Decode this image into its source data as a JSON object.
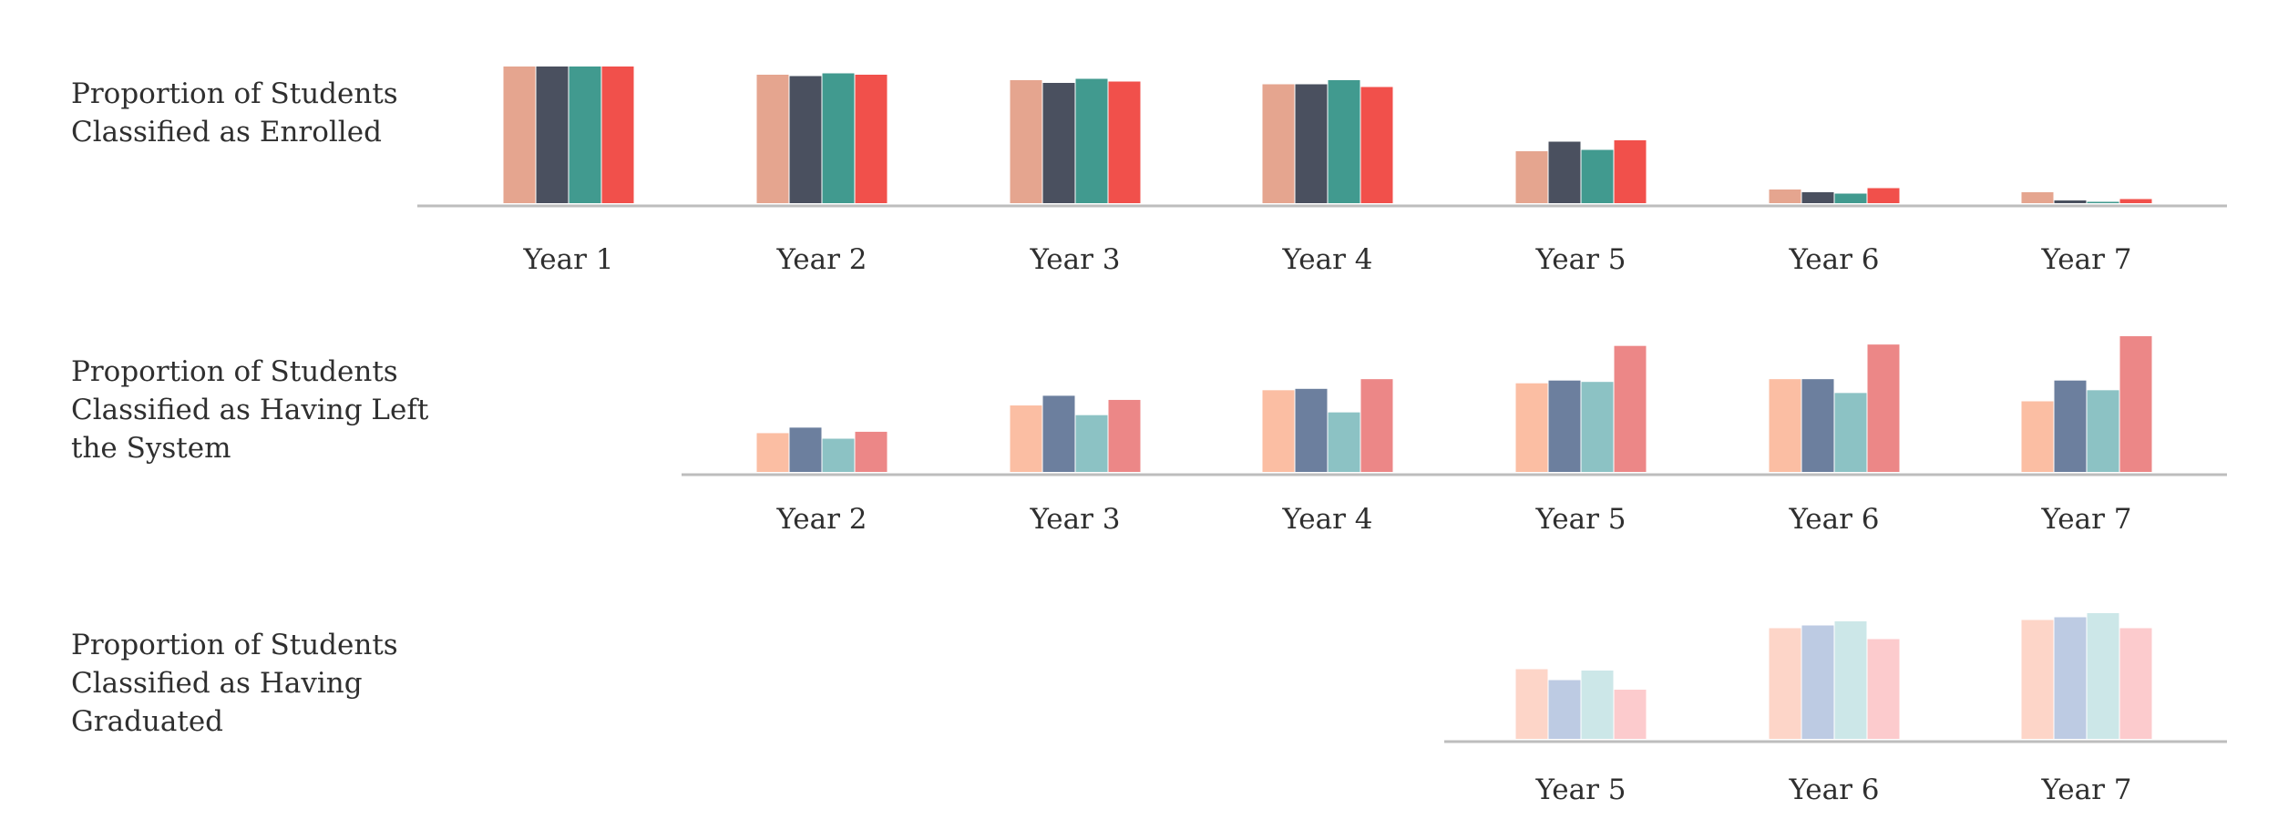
{
  "chart_data": [
    {
      "type": "bar",
      "title": "Proportion of Students\nClassified as Enrolled",
      "categories": [
        "Year 1",
        "Year 2",
        "Year 3",
        "Year 4",
        "Year 5",
        "Year 6",
        "Year 7"
      ],
      "series": [
        {
          "values": [
            1.0,
            0.94,
            0.9,
            0.87,
            0.38,
            0.1,
            0.08
          ],
          "color": "#e5a58f"
        },
        {
          "values": [
            1.0,
            0.93,
            0.88,
            0.87,
            0.45,
            0.08,
            0.02
          ],
          "color": "#4a505f"
        },
        {
          "values": [
            1.0,
            0.95,
            0.91,
            0.9,
            0.39,
            0.07,
            0.01
          ],
          "color": "#419a8f"
        },
        {
          "values": [
            1.0,
            0.94,
            0.89,
            0.85,
            0.46,
            0.11,
            0.03
          ],
          "color": "#f1504b"
        }
      ],
      "ylim": [
        0,
        1
      ],
      "grid": false,
      "legend": "none"
    },
    {
      "type": "bar",
      "title": "Proportion of Students\nClassified as Having Left\nthe System",
      "categories": [
        "Year 2",
        "Year 3",
        "Year 4",
        "Year 5",
        "Year 6",
        "Year 7"
      ],
      "series": [
        {
          "values": [
            0.28,
            0.48,
            0.59,
            0.64,
            0.67,
            0.51
          ],
          "color": "#fbbea3"
        },
        {
          "values": [
            0.32,
            0.55,
            0.6,
            0.66,
            0.67,
            0.66
          ],
          "color": "#6c7f9e"
        },
        {
          "values": [
            0.24,
            0.41,
            0.43,
            0.65,
            0.57,
            0.59
          ],
          "color": "#8cc2c4"
        },
        {
          "values": [
            0.29,
            0.52,
            0.67,
            0.91,
            0.92,
            0.98
          ],
          "color": "#ec8787"
        }
      ],
      "ylim": [
        0,
        1
      ],
      "grid": false,
      "legend": "none"
    },
    {
      "type": "bar",
      "title": "Proportion of Students\nClassified as Having\nGraduated",
      "categories": [
        "Year 5",
        "Year 6",
        "Year 7"
      ],
      "series": [
        {
          "values": [
            0.51,
            0.81,
            0.87
          ],
          "color": "#fdd5c8"
        },
        {
          "values": [
            0.43,
            0.83,
            0.89
          ],
          "color": "#bdcbe3"
        },
        {
          "values": [
            0.5,
            0.86,
            0.92
          ],
          "color": "#cce7e8"
        },
        {
          "values": [
            0.36,
            0.73,
            0.81
          ],
          "color": "#fccbcd"
        }
      ],
      "ylim": [
        0,
        1
      ],
      "grid": false,
      "legend": "none"
    }
  ],
  "colors": {
    "axis": "#bdbdbd",
    "text": "#2f2f2f"
  }
}
